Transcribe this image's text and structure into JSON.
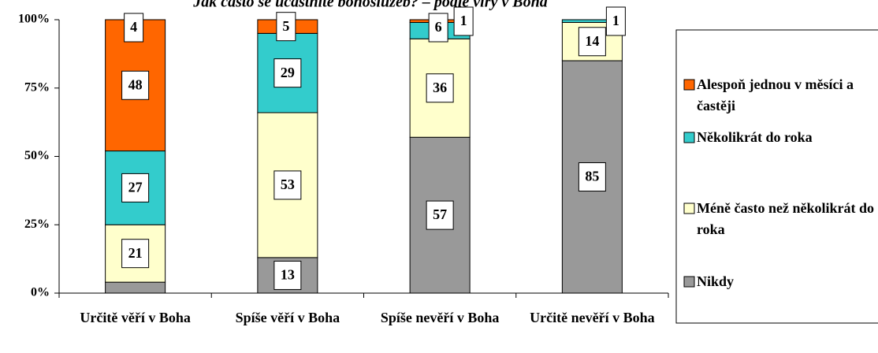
{
  "chart_data": {
    "type": "stacked_bar",
    "title": "Jak často se účastníte bohoslužeb? – podle víry v Boha",
    "categories": [
      "Určitě věří v Boha",
      "Spíše věří v Boha",
      "Spíše nevěří v Boha",
      "Určitě nevěří v Boha"
    ],
    "series": [
      {
        "name": "Nikdy",
        "color": "#999999",
        "values": [
          4,
          13,
          57,
          85
        ]
      },
      {
        "name": "Méně často než několikrát do roka",
        "color": "#ffffcc",
        "values": [
          21,
          53,
          36,
          14
        ]
      },
      {
        "name": "Několikrát do roka",
        "color": "#33cccc",
        "values": [
          27,
          29,
          6,
          1
        ]
      },
      {
        "name": "Alespoň jednou v měsíci a častěji",
        "color": "#ff6600",
        "values": [
          48,
          5,
          1,
          0
        ]
      }
    ],
    "ylim": [
      0,
      100
    ],
    "yticks": [
      {
        "value": 0,
        "label": "0%"
      },
      {
        "value": 25,
        "label": "25%"
      },
      {
        "value": 50,
        "label": "50%"
      },
      {
        "value": 75,
        "label": "75%"
      },
      {
        "value": 100,
        "label": "100%"
      }
    ],
    "legend": "right"
  }
}
